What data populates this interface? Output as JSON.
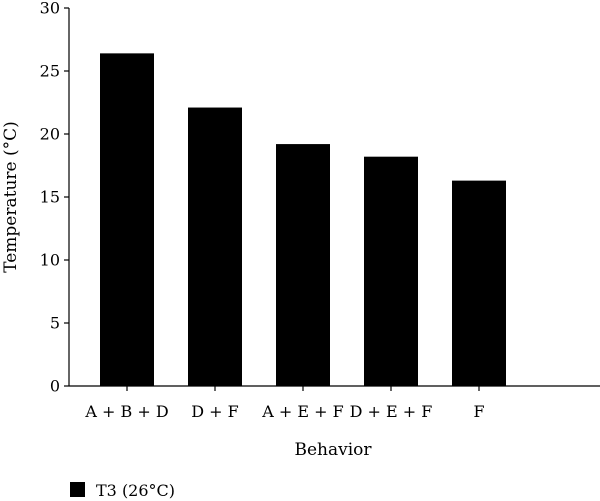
{
  "chart_data": {
    "type": "bar",
    "categories": [
      "A + B + D",
      "D + F",
      "A + E + F",
      "D + E + F",
      "F"
    ],
    "series": [
      {
        "name": "T3 (26°C)",
        "values": [
          26.4,
          22.1,
          19.2,
          18.2,
          16.3
        ],
        "color": "#000000"
      }
    ],
    "xlabel": "Behavior",
    "ylabel": "Temperature (°C)",
    "ylim": [
      0,
      30
    ],
    "yticks": [
      0,
      5,
      10,
      15,
      20,
      25,
      30
    ],
    "grid": false,
    "legend_position": "bottom-left"
  }
}
